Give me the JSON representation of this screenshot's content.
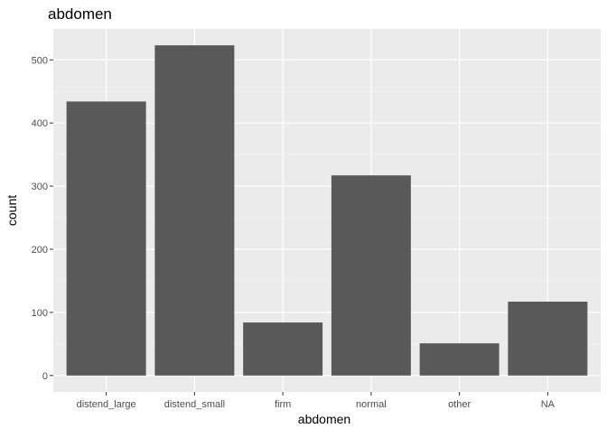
{
  "chart_data": {
    "type": "bar",
    "title": "abdomen",
    "xlabel": "abdomen",
    "ylabel": "count",
    "categories": [
      "distend_large",
      "distend_small",
      "firm",
      "normal",
      "other",
      "NA"
    ],
    "values": [
      434,
      523,
      84,
      317,
      51,
      117
    ],
    "ylim": [
      -26,
      549
    ],
    "yticks": [
      0,
      100,
      200,
      300,
      400,
      500
    ],
    "grid": true,
    "legend": "none",
    "colors": {
      "bar": "#595959",
      "panel": "#ebebeb",
      "grid_major": "#ffffff",
      "grid_minor": "#f5f5f5",
      "tick_text": "#4d4d4d",
      "axis_title": "#000000"
    }
  }
}
